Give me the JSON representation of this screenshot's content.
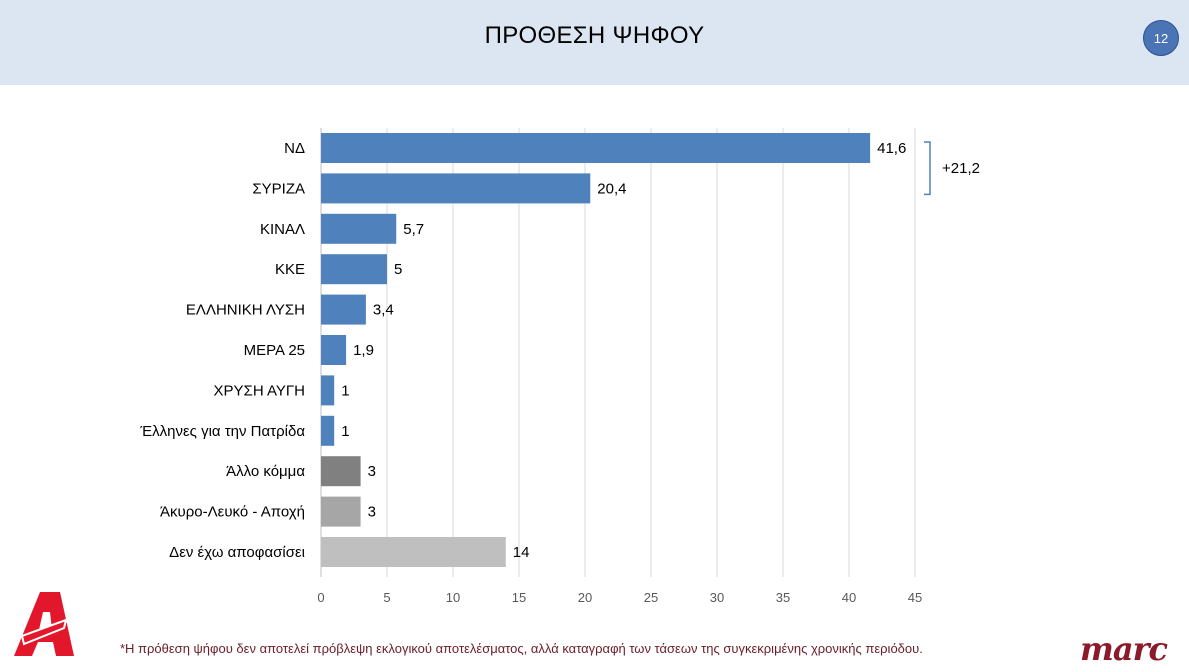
{
  "header": {
    "title": "ΠΡΟΘΕΣΗ ΨΗΦΟΥ",
    "page_number": "12"
  },
  "chart_data": {
    "type": "bar",
    "orientation": "horizontal",
    "title": "",
    "xlabel": "",
    "ylabel": "",
    "xlim": [
      0,
      45
    ],
    "x_ticks": [
      "0",
      "5",
      "10",
      "15",
      "20",
      "25",
      "30",
      "35",
      "40",
      "45"
    ],
    "grid": true,
    "categories": [
      "ΝΔ",
      "ΣΥΡΙΖΑ",
      "ΚΙΝΑΛ",
      "ΚΚΕ",
      "ΕΛΛΗΝΙΚΗ ΛΥΣΗ",
      "ΜΕΡΑ 25",
      "ΧΡΥΣΗ ΑΥΓΗ",
      "Έλληνες για την Πατρίδα",
      "Άλλο κόμμα",
      "Άκυρο-Λευκό - Αποχή",
      "Δεν έχω αποφασίσει"
    ],
    "values": [
      41.6,
      20.4,
      5.7,
      5,
      3.4,
      1.9,
      1,
      1,
      3,
      3,
      14
    ],
    "value_labels": [
      "41,6",
      "20,4",
      "5,7",
      "5",
      "3,4",
      "1,9",
      "1",
      "1",
      "3",
      "3",
      "14"
    ],
    "bar_colors": [
      "#4f81bd",
      "#4f81bd",
      "#4f81bd",
      "#4f81bd",
      "#4f81bd",
      "#4f81bd",
      "#4f81bd",
      "#4f81bd",
      "#808080",
      "#a6a6a6",
      "#bfbfbf"
    ],
    "annotation": {
      "text": "+21,2",
      "between": [
        "ΝΔ",
        "ΣΥΡΙΖΑ"
      ]
    }
  },
  "footnote": "*Η πρόθεση ψήφου δεν αποτελεί πρόβλεψη εκλογικού αποτελέσματος, αλλά καταγραφή των τάσεων της συγκεκριμένης χρονικής περιόδου.",
  "logos": {
    "left": "alpha-logo-icon",
    "right_text": "marc"
  },
  "colors": {
    "header_bg": "#dce6f2",
    "bar_blue": "#4f81bd",
    "badge": "#4a74b5",
    "footnote": "#6b1d2a"
  }
}
